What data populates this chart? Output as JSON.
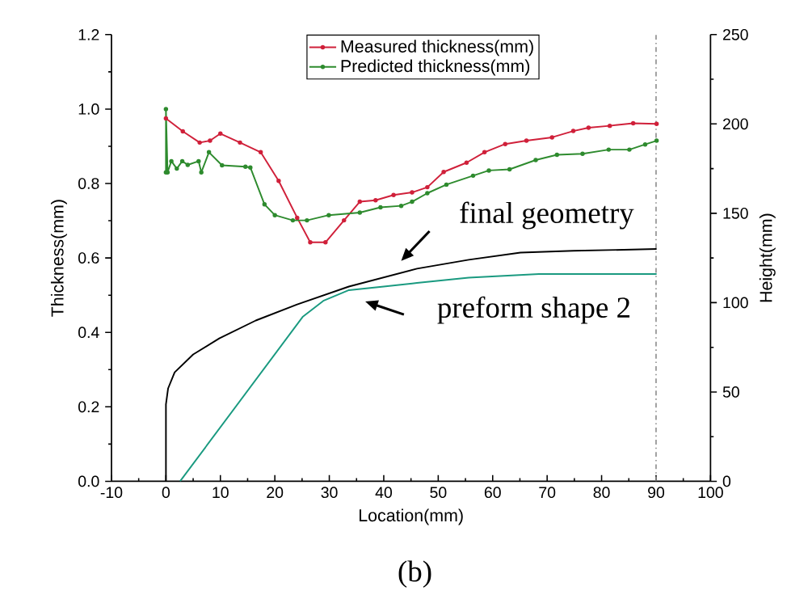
{
  "chart_data": {
    "type": "line",
    "xlabel": "Location(mm)",
    "ylabel": "Thickness(mm)",
    "y2label": "Height(mm)",
    "xlim": [
      -10,
      100
    ],
    "xticks": [
      -10,
      0,
      10,
      20,
      30,
      40,
      50,
      60,
      70,
      80,
      90,
      100
    ],
    "ylim": [
      0,
      1.2
    ],
    "yticks": [
      {
        "value": 0,
        "label": "0.0"
      },
      0.2,
      0.4,
      0.6,
      0.8,
      {
        "value": 1,
        "label": "1.0"
      },
      1.2
    ],
    "y2lim": [
      0,
      250
    ],
    "y2ticks": [
      0,
      50,
      100,
      150,
      200,
      250
    ],
    "legend": "top",
    "grid": false,
    "line_style": "solid",
    "series": [
      {
        "name": "Measured thickness(mm)",
        "color": "#d0203a",
        "marker": "circle",
        "x": [
          0,
          3.1,
          6.2,
          8.1,
          10.0,
          13.6,
          17.4,
          20.7,
          24.1,
          26.5,
          29.3,
          32.7,
          35.6,
          38.5,
          41.8,
          45.2,
          48.0,
          51.0,
          55.2,
          58.5,
          62.3,
          66.2,
          70.9,
          74.8,
          77.6,
          81.5,
          85.8,
          90.1
        ],
        "values": [
          0.975,
          0.94,
          0.91,
          0.915,
          0.934,
          0.91,
          0.884,
          0.807,
          0.708,
          0.642,
          0.642,
          0.701,
          0.751,
          0.755,
          0.769,
          0.776,
          0.79,
          0.831,
          0.856,
          0.884,
          0.906,
          0.915,
          0.924,
          0.941,
          0.95,
          0.955,
          0.962,
          0.96
        ]
      },
      {
        "name": "Predicted thickness(mm)",
        "color": "#2e8b2e",
        "marker": "circle",
        "x": [
          0,
          0,
          0.3,
          1,
          2,
          3,
          4,
          6,
          6.5,
          7.9,
          10.3,
          14.6,
          15.5,
          18.1,
          20.0,
          23.3,
          25.9,
          29.9,
          35.6,
          39.4,
          43.2,
          45.2,
          48.0,
          51.5,
          56.4,
          59.3,
          63.1,
          67.9,
          71.8,
          76.5,
          81.3,
          85.1,
          88.0,
          90.1
        ],
        "values": [
          0.83,
          1.0,
          0.83,
          0.86,
          0.84,
          0.86,
          0.85,
          0.86,
          0.83,
          0.884,
          0.849,
          0.845,
          0.843,
          0.744,
          0.715,
          0.701,
          0.701,
          0.715,
          0.722,
          0.736,
          0.74,
          0.751,
          0.774,
          0.797,
          0.821,
          0.835,
          0.838,
          0.863,
          0.877,
          0.88,
          0.891,
          0.891,
          0.905,
          0.915
        ]
      },
      {
        "color": "#000000",
        "axis": "y2",
        "marker": "none",
        "x": [
          0,
          0,
          0.4,
          1.6,
          5.0,
          9.8,
          16.5,
          24.1,
          33.6,
          46.1,
          55.6,
          65.1,
          74.8,
          90.1
        ],
        "values": [
          0,
          43,
          52,
          61,
          71,
          80,
          90,
          99,
          109,
          119,
          124,
          128,
          129,
          130
        ]
      },
      {
        "color": "#1a9a80",
        "axis": "y2",
        "marker": "none",
        "x": [
          2.6,
          25.1,
          28.9,
          33.6,
          40,
          46.1,
          55.6,
          68.5,
          90.1
        ],
        "values": [
          0,
          92,
          101,
          107,
          109,
          111,
          114,
          116,
          116
        ]
      }
    ],
    "ref_lines": [
      {
        "axis": "x",
        "value": 90,
        "color": "#888888",
        "line_style": "dashdotted"
      }
    ],
    "annotations": [
      "final geometry",
      "preform shape 2",
      "(b)"
    ]
  }
}
